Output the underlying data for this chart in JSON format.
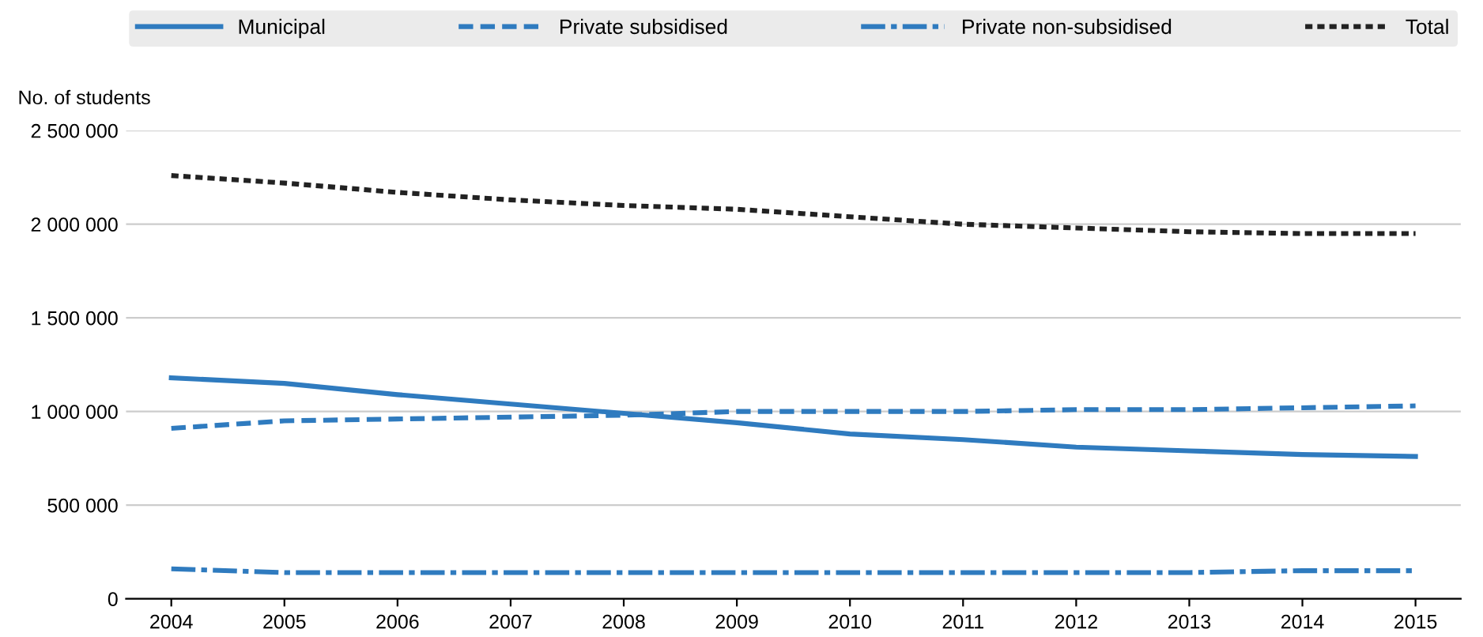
{
  "chart_data": {
    "type": "line",
    "ylabel": "No. of students",
    "categories": [
      "2004",
      "2005",
      "2006",
      "2007",
      "2008",
      "2009",
      "2010",
      "2011",
      "2012",
      "2013",
      "2014",
      "2015"
    ],
    "series": [
      {
        "name": "Municipal",
        "color": "#2f7bbf",
        "line_style": "solid",
        "values": [
          1180000,
          1150000,
          1090000,
          1040000,
          990000,
          940000,
          880000,
          850000,
          810000,
          790000,
          770000,
          760000
        ]
      },
      {
        "name": "Private subsidised",
        "color": "#2f7bbf",
        "line_style": "dashed",
        "values": [
          910000,
          950000,
          960000,
          970000,
          980000,
          1000000,
          1000000,
          1000000,
          1010000,
          1010000,
          1020000,
          1030000
        ]
      },
      {
        "name": "Private non-subsidised",
        "color": "#2f7bbf",
        "line_style": "dashdot",
        "values": [
          160000,
          140000,
          140000,
          140000,
          140000,
          140000,
          140000,
          140000,
          140000,
          140000,
          150000,
          150000
        ]
      },
      {
        "name": "Total",
        "color": "#222222",
        "line_style": "dotted",
        "values": [
          2260000,
          2220000,
          2170000,
          2130000,
          2100000,
          2080000,
          2040000,
          2000000,
          1980000,
          1960000,
          1950000,
          1950000
        ]
      }
    ],
    "ylim": [
      0,
      2500000
    ],
    "yticks": [
      0,
      {
        "value": 500000,
        "label": "500 000"
      },
      {
        "value": 1000000,
        "label": "1 000 000"
      },
      {
        "value": 1500000,
        "label": "1 500 000"
      },
      {
        "value": 2000000,
        "label": "2 000 000"
      },
      {
        "value": 2500000,
        "label": "2 500 000"
      }
    ],
    "grid": "y",
    "legend": "top",
    "marker": "none"
  }
}
